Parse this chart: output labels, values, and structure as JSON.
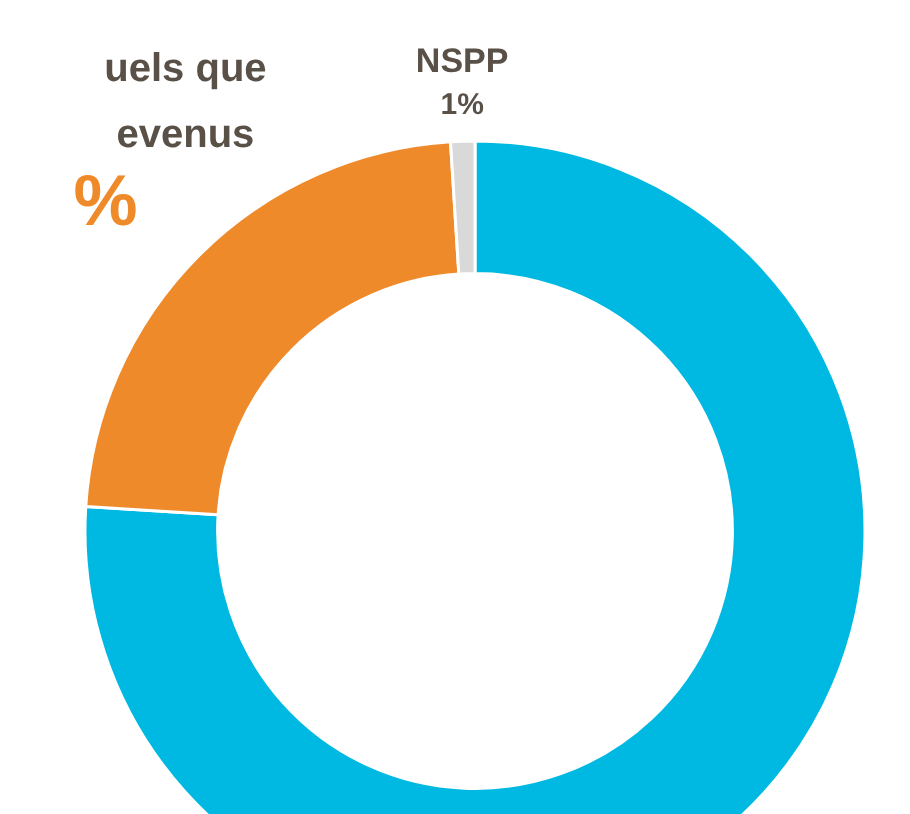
{
  "chart_data": {
    "type": "donut",
    "categories": [
      null,
      "uels que\nevenus",
      "NSPP"
    ],
    "values": [
      76,
      23,
      1
    ],
    "colors": [
      "#00b9e2",
      "#ef8a2b",
      "#d9d9d9"
    ],
    "value_labels": [
      null,
      "%",
      "1%"
    ]
  }
}
